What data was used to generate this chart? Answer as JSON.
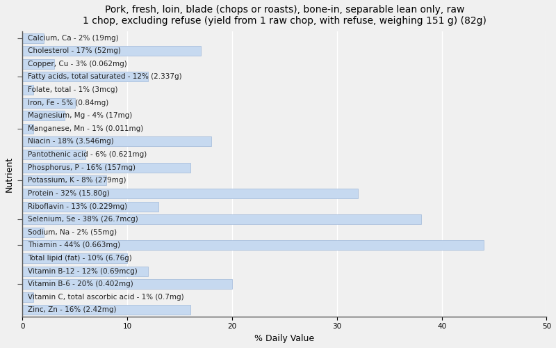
{
  "title": "Pork, fresh, loin, blade (chops or roasts), bone-in, separable lean only, raw\n1 chop, excluding refuse (yield from 1 raw chop, with refuse, weighing 151 g) (82g)",
  "xlabel": "% Daily Value",
  "ylabel": "Nutrient",
  "nutrients": [
    "Calcium, Ca - 2% (19mg)",
    "Cholesterol - 17% (52mg)",
    "Copper, Cu - 3% (0.062mg)",
    "Fatty acids, total saturated - 12% (2.337g)",
    "Folate, total - 1% (3mcg)",
    "Iron, Fe - 5% (0.84mg)",
    "Magnesium, Mg - 4% (17mg)",
    "Manganese, Mn - 1% (0.011mg)",
    "Niacin - 18% (3.546mg)",
    "Pantothenic acid - 6% (0.621mg)",
    "Phosphorus, P - 16% (157mg)",
    "Potassium, K - 8% (279mg)",
    "Protein - 32% (15.80g)",
    "Riboflavin - 13% (0.229mg)",
    "Selenium, Se - 38% (26.7mcg)",
    "Sodium, Na - 2% (55mg)",
    "Thiamin - 44% (0.663mg)",
    "Total lipid (fat) - 10% (6.76g)",
    "Vitamin B-12 - 12% (0.69mcg)",
    "Vitamin B-6 - 20% (0.402mg)",
    "Vitamin C, total ascorbic acid - 1% (0.7mg)",
    "Zinc, Zn - 16% (2.42mg)"
  ],
  "values": [
    2,
    17,
    3,
    12,
    1,
    5,
    4,
    1,
    18,
    6,
    16,
    8,
    32,
    13,
    38,
    2,
    44,
    10,
    12,
    20,
    1,
    16
  ],
  "bar_color": "#c6d9f0",
  "bar_edge_color": "#a0b8d8",
  "background_color": "#f0f0f0",
  "xlim": [
    0,
    50
  ],
  "xticks": [
    0,
    10,
    20,
    30,
    40,
    50
  ],
  "title_fontsize": 10,
  "label_fontsize": 7.5,
  "axis_label_fontsize": 9,
  "grid_color": "#ffffff",
  "text_color": "#222222"
}
